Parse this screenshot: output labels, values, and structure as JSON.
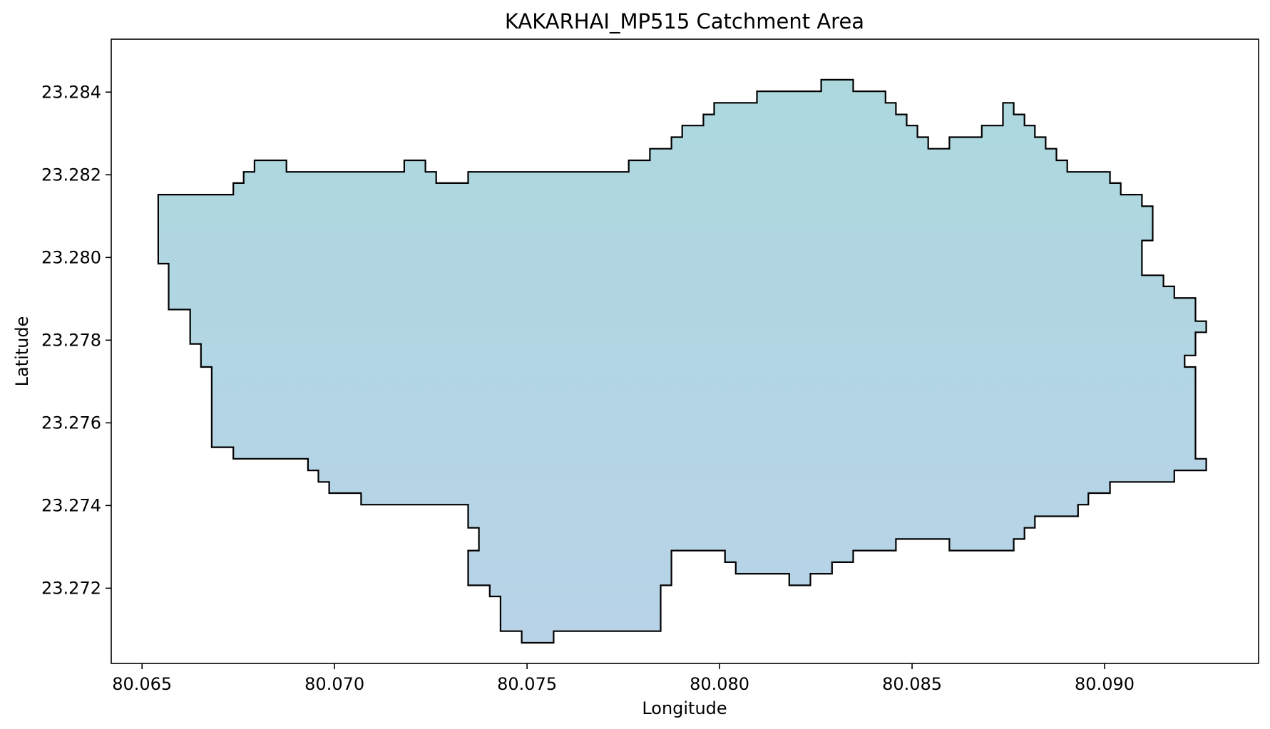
{
  "chart_data": {
    "type": "area",
    "title": "KAKARHAI_MP515 Catchment Area",
    "xlabel": "Longitude",
    "ylabel": "Latitude",
    "xlim": [
      80.0642,
      80.094
    ],
    "ylim": [
      23.27018,
      23.28528
    ],
    "xticks": [
      80.065,
      80.07,
      80.075,
      80.08,
      80.085,
      80.09
    ],
    "xtick_labels": [
      "80.065",
      "80.070",
      "80.075",
      "80.080",
      "80.085",
      "80.090"
    ],
    "yticks": [
      23.272,
      23.274,
      23.276,
      23.278,
      23.28,
      23.282,
      23.284
    ],
    "ytick_labels": [
      "23.272",
      "23.274",
      "23.276",
      "23.278",
      "23.280",
      "23.282",
      "23.284"
    ],
    "grid": false,
    "colors": {
      "fill_top": "#acd8de",
      "fill_bottom": "#b8d3e8",
      "edge": "#000000",
      "frame": "#000000"
    },
    "series": [
      {
        "points": [
          [
            80.06542,
            23.28152
          ],
          [
            80.06737,
            23.28152
          ],
          [
            80.06737,
            23.2818
          ],
          [
            80.06764,
            23.2818
          ],
          [
            80.06764,
            23.28207
          ],
          [
            80.06792,
            23.28207
          ],
          [
            80.06792,
            23.28235
          ],
          [
            80.06875,
            23.28235
          ],
          [
            80.06875,
            23.28207
          ],
          [
            80.07181,
            23.28207
          ],
          [
            80.07181,
            23.28235
          ],
          [
            80.07236,
            23.28235
          ],
          [
            80.07236,
            23.28207
          ],
          [
            80.07264,
            23.28207
          ],
          [
            80.07264,
            23.2818
          ],
          [
            80.07347,
            23.2818
          ],
          [
            80.07347,
            23.28207
          ],
          [
            80.07764,
            23.28207
          ],
          [
            80.07764,
            23.28235
          ],
          [
            80.07819,
            23.28235
          ],
          [
            80.07819,
            23.28263
          ],
          [
            80.07875,
            23.28263
          ],
          [
            80.07875,
            23.28291
          ],
          [
            80.07903,
            23.28291
          ],
          [
            80.07903,
            23.28319
          ],
          [
            80.07958,
            23.28319
          ],
          [
            80.07958,
            23.28346
          ],
          [
            80.07986,
            23.28346
          ],
          [
            80.07986,
            23.28374
          ],
          [
            80.08097,
            23.28374
          ],
          [
            80.08097,
            23.28402
          ],
          [
            80.08264,
            23.28402
          ],
          [
            80.08264,
            23.2843
          ],
          [
            80.08347,
            23.2843
          ],
          [
            80.08347,
            23.28402
          ],
          [
            80.08431,
            23.28402
          ],
          [
            80.08431,
            23.28374
          ],
          [
            80.08458,
            23.28374
          ],
          [
            80.08458,
            23.28346
          ],
          [
            80.08486,
            23.28346
          ],
          [
            80.08486,
            23.28319
          ],
          [
            80.08514,
            23.28319
          ],
          [
            80.08514,
            23.28291
          ],
          [
            80.08542,
            23.28291
          ],
          [
            80.08542,
            23.28263
          ],
          [
            80.08597,
            23.28263
          ],
          [
            80.08597,
            23.28291
          ],
          [
            80.08681,
            23.28291
          ],
          [
            80.08681,
            23.28319
          ],
          [
            80.08736,
            23.28319
          ],
          [
            80.08736,
            23.28374
          ],
          [
            80.08764,
            23.28374
          ],
          [
            80.08764,
            23.28346
          ],
          [
            80.08792,
            23.28346
          ],
          [
            80.08792,
            23.28319
          ],
          [
            80.08819,
            23.28319
          ],
          [
            80.08819,
            23.28291
          ],
          [
            80.08847,
            23.28291
          ],
          [
            80.08847,
            23.28263
          ],
          [
            80.08875,
            23.28263
          ],
          [
            80.08875,
            23.28235
          ],
          [
            80.08903,
            23.28235
          ],
          [
            80.08903,
            23.28207
          ],
          [
            80.09014,
            23.28207
          ],
          [
            80.09014,
            23.2818
          ],
          [
            80.09042,
            23.2818
          ],
          [
            80.09042,
            23.28152
          ],
          [
            80.09097,
            23.28152
          ],
          [
            80.09097,
            23.28124
          ],
          [
            80.09125,
            23.28124
          ],
          [
            80.09125,
            23.28041
          ],
          [
            80.09097,
            23.28041
          ],
          [
            80.09097,
            23.27957
          ],
          [
            80.09153,
            23.27957
          ],
          [
            80.09153,
            23.2793
          ],
          [
            80.09181,
            23.2793
          ],
          [
            80.09181,
            23.27902
          ],
          [
            80.09236,
            23.27902
          ],
          [
            80.09236,
            23.27846
          ],
          [
            80.09264,
            23.27846
          ],
          [
            80.09264,
            23.27819
          ],
          [
            80.09236,
            23.27819
          ],
          [
            80.09236,
            23.27763
          ],
          [
            80.09208,
            23.27763
          ],
          [
            80.09208,
            23.27735
          ],
          [
            80.09236,
            23.27735
          ],
          [
            80.09236,
            23.27513
          ],
          [
            80.09264,
            23.27513
          ],
          [
            80.09264,
            23.27485
          ],
          [
            80.09181,
            23.27485
          ],
          [
            80.09181,
            23.27457
          ],
          [
            80.09014,
            23.27457
          ],
          [
            80.09014,
            23.2743
          ],
          [
            80.08958,
            23.2743
          ],
          [
            80.08958,
            23.27402
          ],
          [
            80.08931,
            23.27402
          ],
          [
            80.08931,
            23.27374
          ],
          [
            80.08819,
            23.27374
          ],
          [
            80.08819,
            23.27346
          ],
          [
            80.08792,
            23.27346
          ],
          [
            80.08792,
            23.27319
          ],
          [
            80.08764,
            23.27319
          ],
          [
            80.08764,
            23.27291
          ],
          [
            80.08597,
            23.27291
          ],
          [
            80.08597,
            23.27319
          ],
          [
            80.08458,
            23.27319
          ],
          [
            80.08458,
            23.27291
          ],
          [
            80.08347,
            23.27291
          ],
          [
            80.08347,
            23.27263
          ],
          [
            80.08292,
            23.27263
          ],
          [
            80.08292,
            23.27235
          ],
          [
            80.08236,
            23.27235
          ],
          [
            80.08236,
            23.27207
          ],
          [
            80.08181,
            23.27207
          ],
          [
            80.08181,
            23.27235
          ],
          [
            80.08042,
            23.27235
          ],
          [
            80.08042,
            23.27263
          ],
          [
            80.08014,
            23.27263
          ],
          [
            80.08014,
            23.27291
          ],
          [
            80.07875,
            23.27291
          ],
          [
            80.07875,
            23.27207
          ],
          [
            80.07847,
            23.27207
          ],
          [
            80.07847,
            23.27096
          ],
          [
            80.07569,
            23.27096
          ],
          [
            80.07569,
            23.27068
          ],
          [
            80.07486,
            23.27068
          ],
          [
            80.07486,
            23.27096
          ],
          [
            80.07431,
            23.27096
          ],
          [
            80.07431,
            23.2718
          ],
          [
            80.07403,
            23.2718
          ],
          [
            80.07403,
            23.27207
          ],
          [
            80.07347,
            23.27207
          ],
          [
            80.07347,
            23.27291
          ],
          [
            80.07375,
            23.27291
          ],
          [
            80.07375,
            23.27346
          ],
          [
            80.07347,
            23.27346
          ],
          [
            80.07347,
            23.27402
          ],
          [
            80.07069,
            23.27402
          ],
          [
            80.07069,
            23.2743
          ],
          [
            80.06986,
            23.2743
          ],
          [
            80.06986,
            23.27457
          ],
          [
            80.06958,
            23.27457
          ],
          [
            80.06958,
            23.27485
          ],
          [
            80.06931,
            23.27485
          ],
          [
            80.06931,
            23.27513
          ],
          [
            80.06737,
            23.27513
          ],
          [
            80.06737,
            23.27541
          ],
          [
            80.06681,
            23.27541
          ],
          [
            80.06681,
            23.27735
          ],
          [
            80.06653,
            23.27735
          ],
          [
            80.06653,
            23.27791
          ],
          [
            80.06625,
            23.27791
          ],
          [
            80.06625,
            23.27874
          ],
          [
            80.06569,
            23.27874
          ],
          [
            80.06569,
            23.27985
          ],
          [
            80.06542,
            23.27985
          ]
        ]
      }
    ]
  }
}
